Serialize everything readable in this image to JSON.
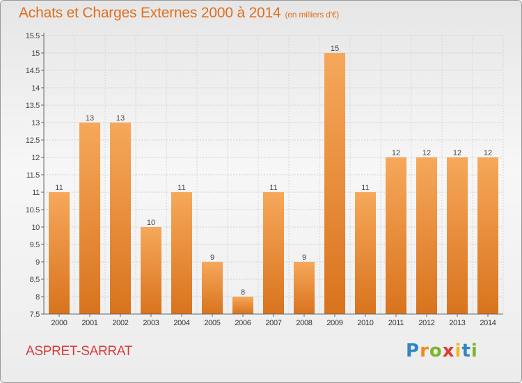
{
  "header": {
    "title": "Achats et Charges Externes 2000 à 2014",
    "unit_note": "(en milliers d'€)"
  },
  "footer": {
    "place_name": "ASPRET-SARRAT",
    "brand_letters": [
      {
        "char": "P",
        "color": "#2e86c8"
      },
      {
        "char": "r",
        "color": "#f08a1c"
      },
      {
        "char": "o",
        "color": "#7ab52b"
      },
      {
        "char": "x",
        "color": "#e23a2f"
      },
      {
        "char": "i",
        "color": "#f0b820"
      },
      {
        "char": "t",
        "color": "#2e86c8"
      },
      {
        "char": "i",
        "color": "#7ab52b"
      }
    ]
  },
  "colors": {
    "title": "#df6f20",
    "bar_top": "#f6a85a",
    "bar_bottom": "#d9731d",
    "place": "#d83c3c"
  },
  "chart_data": {
    "type": "bar",
    "categories": [
      "2000",
      "2001",
      "2002",
      "2003",
      "2004",
      "2005",
      "2006",
      "2007",
      "2008",
      "2009",
      "2010",
      "2011",
      "2012",
      "2013",
      "2014"
    ],
    "values": [
      11,
      13,
      13,
      10,
      11,
      9,
      8,
      11,
      9,
      15,
      11,
      12,
      12,
      12,
      12
    ],
    "data_labels": [
      "11",
      "13",
      "13",
      "10",
      "11",
      "9",
      "8",
      "11",
      "9",
      "15",
      "11",
      "12",
      "12",
      "12",
      "12"
    ],
    "ylim": [
      7.5,
      15.5
    ],
    "yticks": [
      7.5,
      8,
      8.5,
      9,
      9.5,
      10,
      10.5,
      11,
      11.5,
      12,
      12.5,
      13,
      13.5,
      14,
      14.5,
      15,
      15.5
    ],
    "ytick_labels": [
      "7.5",
      "8",
      "8.5",
      "9",
      "9.5",
      "10",
      "10.5",
      "11",
      "11.5",
      "12",
      "12.5",
      "13",
      "13.5",
      "14",
      "14.5",
      "15",
      "15.5"
    ],
    "grid": true
  }
}
